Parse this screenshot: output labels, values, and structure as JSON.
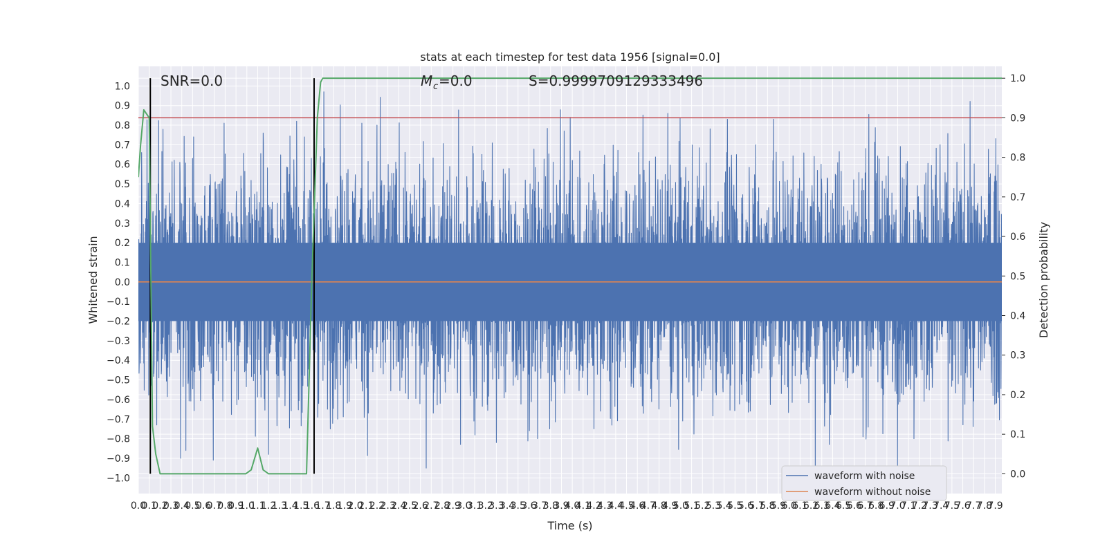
{
  "chart_data": {
    "type": "line",
    "title": "stats at each timestep for test data 1956 [signal=0.0]",
    "xlabel": "Time (s)",
    "ylabel": "Whitened strain",
    "y2label": "Detection probability",
    "xlim": [
      0.0,
      7.96
    ],
    "ylim": [
      -1.08,
      1.1
    ],
    "y2lim": [
      -0.05,
      1.03
    ],
    "grid": true,
    "legend_position": "bottom-right",
    "x_ticks": [
      "0.0",
      "0.1",
      "0.2",
      "0.3",
      "0.4",
      "0.5",
      "0.6",
      "0.7",
      "0.8",
      "0.9",
      "1.0",
      "1.1",
      "1.2",
      "1.3",
      "1.4",
      "1.5",
      "1.6",
      "1.7",
      "1.8",
      "1.9",
      "2.0",
      "2.1",
      "2.2",
      "2.3",
      "2.4",
      "2.5",
      "2.6",
      "2.7",
      "2.8",
      "2.9",
      "3.0",
      "3.1",
      "3.2",
      "3.3",
      "3.4",
      "3.5",
      "3.6",
      "3.7",
      "3.8",
      "3.9",
      "4.0",
      "4.1",
      "4.2",
      "4.3",
      "4.4",
      "4.5",
      "4.6",
      "4.7",
      "4.8",
      "4.9",
      "5.0",
      "5.1",
      "5.2",
      "5.3",
      "5.4",
      "5.5",
      "5.6",
      "5.7",
      "5.8",
      "5.9",
      "6.0",
      "6.1",
      "6.2",
      "6.3",
      "6.4",
      "6.5",
      "6.6",
      "6.7",
      "6.8",
      "6.9",
      "7.0",
      "7.1",
      "7.2",
      "7.3",
      "7.4",
      "7.5",
      "7.6",
      "7.7",
      "7.8",
      "7.9"
    ],
    "y_ticks": [
      "-1.0",
      "-0.9",
      "-0.8",
      "-0.7",
      "-0.6",
      "-0.5",
      "-0.4",
      "-0.3",
      "-0.2",
      "-0.1",
      "0.0",
      "0.1",
      "0.2",
      "0.3",
      "0.4",
      "0.5",
      "0.6",
      "0.7",
      "0.8",
      "0.9",
      "1.0"
    ],
    "y2_ticks": [
      "0.0",
      "0.1",
      "0.2",
      "0.3",
      "0.4",
      "0.5",
      "0.6",
      "0.7",
      "0.8",
      "0.9",
      "1.0"
    ],
    "annotations": {
      "snr": "SNR=0.0",
      "mc": "=0.0",
      "s": "S=0.9999709129333496"
    },
    "threshold": {
      "value": 0.9,
      "axis": "y2",
      "color": "#c44e52"
    },
    "vertical_lines": [
      {
        "x": 0.11,
        "color": "#000000"
      },
      {
        "x": 1.62,
        "color": "#000000"
      }
    ],
    "colors": {
      "noise": "#4c72b0",
      "clean": "#dd8452",
      "prob": "#55a868"
    },
    "series": [
      {
        "name": "waveform with noise",
        "color": "#4c72b0",
        "style": "dense-noise",
        "typical_range": [
          -0.4,
          0.4
        ],
        "peak_positive": [
          {
            "x": 0.03,
            "y": 0.66
          },
          {
            "x": 0.5,
            "y": 0.63
          },
          {
            "x": 0.51,
            "y": 0.74
          },
          {
            "x": 0.79,
            "y": 0.81
          },
          {
            "x": 1.15,
            "y": 0.76
          },
          {
            "x": 1.46,
            "y": 0.82
          },
          {
            "x": 1.53,
            "y": 0.74
          },
          {
            "x": 1.71,
            "y": 0.97
          },
          {
            "x": 2.06,
            "y": 0.81
          },
          {
            "x": 2.2,
            "y": 0.8
          },
          {
            "x": 3.98,
            "y": 0.84
          },
          {
            "x": 4.88,
            "y": 0.86
          },
          {
            "x": 5.43,
            "y": 0.83
          },
          {
            "x": 7.39,
            "y": 0.7
          }
        ],
        "peak_negative": [
          {
            "x": 0.17,
            "y": -0.73
          },
          {
            "x": 0.39,
            "y": -0.9
          },
          {
            "x": 0.69,
            "y": -0.91
          },
          {
            "x": 1.2,
            "y": -0.88
          },
          {
            "x": 2.97,
            "y": -0.83
          },
          {
            "x": 3.3,
            "y": -0.82
          },
          {
            "x": 3.68,
            "y": -0.8
          },
          {
            "x": 6.24,
            "y": -0.98
          },
          {
            "x": 6.37,
            "y": -0.83
          },
          {
            "x": 6.68,
            "y": -0.79
          },
          {
            "x": 7.15,
            "y": -0.8
          }
        ]
      },
      {
        "name": "waveform without noise",
        "color": "#dd8452",
        "x": [
          0.0,
          7.96
        ],
        "y": [
          0.0,
          0.0
        ]
      },
      {
        "name": "",
        "axis": "y2",
        "color": "#55a868",
        "x": [
          0.0,
          0.02,
          0.05,
          0.1,
          0.13,
          0.16,
          0.2,
          0.25,
          0.3,
          0.5,
          0.8,
          0.99,
          1.04,
          1.1,
          1.15,
          1.2,
          1.3,
          1.4,
          1.55,
          1.6,
          1.65,
          1.68,
          1.7,
          7.96
        ],
        "y": [
          0.75,
          0.83,
          0.92,
          0.9,
          0.12,
          0.05,
          0.0,
          0.0,
          0.0,
          0.0,
          0.0,
          0.0,
          0.01,
          0.065,
          0.01,
          0.0,
          0.0,
          0.0,
          0.0,
          0.5,
          0.9,
          0.99,
          1.0,
          1.0
        ]
      }
    ]
  }
}
